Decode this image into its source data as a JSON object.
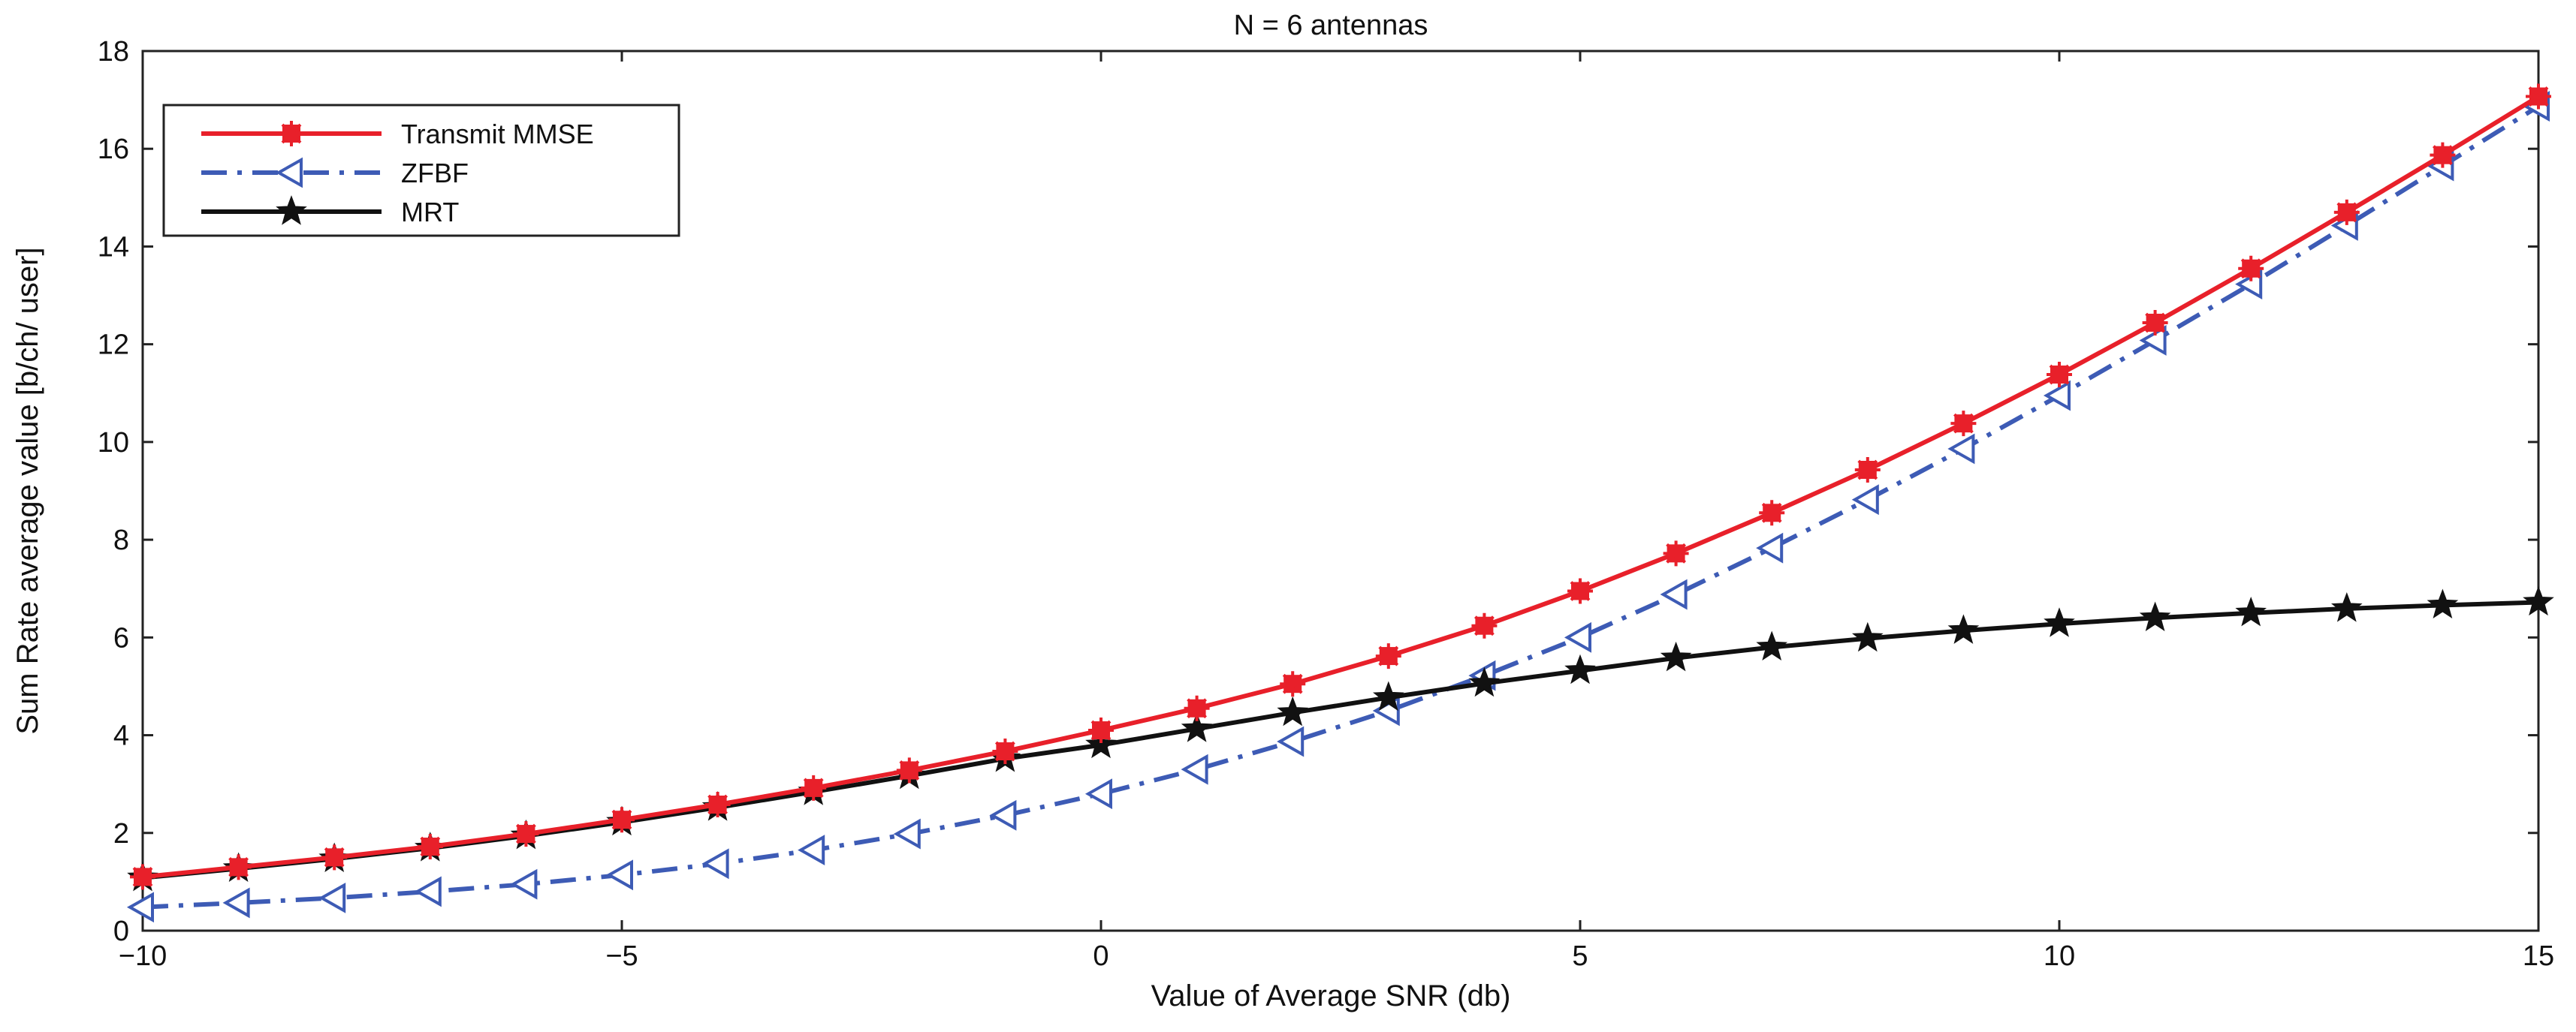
{
  "chart_data": {
    "type": "line",
    "title": "N = 6 antennas",
    "xlabel": "Value of Average SNR (db)",
    "ylabel": "Sum Rate average value [b/ch/ user]",
    "xlim": [
      -10,
      15
    ],
    "ylim": [
      0,
      18
    ],
    "xticks": [
      -10,
      -5,
      0,
      5,
      10,
      15
    ],
    "yticks": [
      0,
      2,
      4,
      6,
      8,
      10,
      12,
      14,
      16,
      18
    ],
    "grid": false,
    "legend_position": "top-left",
    "x": [
      -10,
      -9,
      -8,
      -7,
      -6,
      -5,
      -4,
      -3,
      -2,
      -1,
      0,
      1,
      2,
      3,
      4,
      5,
      6,
      7,
      8,
      9,
      10,
      11,
      12,
      13,
      14,
      15
    ],
    "series": [
      {
        "name": "Transmit MMSE",
        "color": "#e8202a",
        "line_style": "solid",
        "marker": "asterisk-square",
        "values": [
          1.1,
          1.3,
          1.5,
          1.72,
          1.98,
          2.27,
          2.58,
          2.92,
          3.28,
          3.67,
          4.1,
          4.55,
          5.05,
          5.62,
          6.24,
          6.95,
          7.72,
          8.55,
          9.43,
          10.38,
          11.38,
          12.44,
          13.55,
          14.7,
          15.87,
          17.07
        ]
      },
      {
        "name": "ZFBF",
        "color": "#3d5bb5",
        "line_style": "dash-dot",
        "marker": "triangle-left",
        "values": [
          0.48,
          0.57,
          0.67,
          0.8,
          0.95,
          1.14,
          1.37,
          1.65,
          1.98,
          2.36,
          2.8,
          3.3,
          3.87,
          4.5,
          5.22,
          6.0,
          6.88,
          7.83,
          8.82,
          9.86,
          10.95,
          12.08,
          13.23,
          14.43,
          15.65,
          16.87
        ]
      },
      {
        "name": "MRT",
        "color": "#111111",
        "line_style": "solid",
        "marker": "star",
        "values": [
          1.08,
          1.27,
          1.47,
          1.69,
          1.94,
          2.22,
          2.52,
          2.84,
          3.17,
          3.52,
          3.8,
          4.13,
          4.46,
          4.77,
          5.06,
          5.32,
          5.58,
          5.8,
          5.98,
          6.14,
          6.28,
          6.4,
          6.5,
          6.59,
          6.66,
          6.72
        ]
      }
    ]
  }
}
